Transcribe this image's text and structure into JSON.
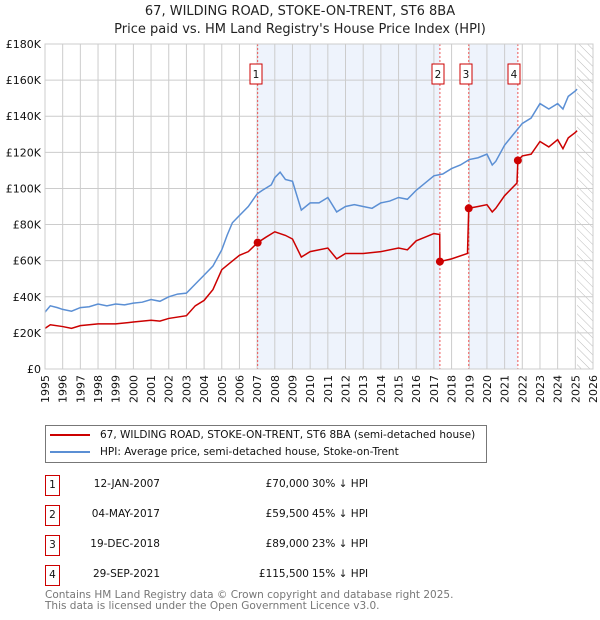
{
  "title": "67, WILDING ROAD, STOKE-ON-TRENT, ST6 8BA",
  "subtitle": "Price paid vs. HM Land Registry's House Price Index (HPI)",
  "legend": {
    "property": "67, WILDING ROAD, STOKE-ON-TRENT, ST6 8BA (semi-detached house)",
    "hpi": "HPI: Average price, semi-detached house, Stoke-on-Trent"
  },
  "sales": [
    {
      "n": "1",
      "date": "12-JAN-2007",
      "price": "£70,000",
      "hpi": "30% ↓ HPI"
    },
    {
      "n": "2",
      "date": "04-MAY-2017",
      "price": "£59,500",
      "hpi": "45% ↓ HPI"
    },
    {
      "n": "3",
      "date": "19-DEC-2018",
      "price": "£89,000",
      "hpi": "23% ↓ HPI"
    },
    {
      "n": "4",
      "date": "29-SEP-2021",
      "price": "£115,500",
      "hpi": "15% ↓ HPI"
    }
  ],
  "footer": [
    "Contains HM Land Registry data © Crown copyright and database right 2025.",
    "This data is licensed under the Open Government Licence v3.0."
  ],
  "chart_data": {
    "type": "line",
    "xlim": [
      1995,
      2026
    ],
    "ylim": [
      0,
      180000
    ],
    "yticks": [
      "£0",
      "£20K",
      "£40K",
      "£60K",
      "£80K",
      "£100K",
      "£120K",
      "£140K",
      "£160K",
      "£180K"
    ],
    "xticks": [
      "1995",
      "1996",
      "1997",
      "1998",
      "1999",
      "2000",
      "2001",
      "2002",
      "2003",
      "2004",
      "2005",
      "2006",
      "2007",
      "2008",
      "2009",
      "2010",
      "2011",
      "2012",
      "2013",
      "2014",
      "2015",
      "2016",
      "2017",
      "2018",
      "2019",
      "2020",
      "2021",
      "2022",
      "2023",
      "2024",
      "2025",
      "2026"
    ],
    "colors": {
      "property": "#cc0000",
      "hpi": "#5b8fd4",
      "shade": "#eef3fc"
    },
    "shaded": [
      [
        2007.03,
        2017.34
      ],
      [
        2018.97,
        2021.75
      ]
    ],
    "forecast_from": 2025.1,
    "series": [
      {
        "name": "hpi",
        "x": [
          1995,
          1995.3,
          1995.7,
          1996,
          1996.5,
          1997,
          1997.5,
          1998,
          1998.5,
          1999,
          1999.5,
          2000,
          2000.5,
          2001,
          2001.5,
          2002,
          2002.5,
          2003,
          2003.5,
          2004,
          2004.5,
          2005,
          2005.3,
          2005.6,
          2006,
          2006.5,
          2007,
          2007.3,
          2007.8,
          2008,
          2008.3,
          2008.6,
          2009,
          2009.5,
          2010,
          2010.5,
          2011,
          2011.5,
          2012,
          2012.5,
          2013,
          2013.5,
          2014,
          2014.5,
          2015,
          2015.5,
          2016,
          2016.5,
          2017,
          2017.5,
          2018,
          2018.5,
          2019,
          2019.5,
          2020,
          2020.3,
          2020.5,
          2021,
          2021.5,
          2022,
          2022.5,
          2023,
          2023.5,
          2024,
          2024.3,
          2024.6,
          2025,
          2025.1
        ],
        "y": [
          31500,
          35000,
          34000,
          33000,
          32000,
          34000,
          34500,
          36000,
          35000,
          36000,
          35500,
          36500,
          37000,
          38500,
          37500,
          40000,
          41500,
          42000,
          47000,
          52000,
          57000,
          66000,
          74000,
          81000,
          85000,
          90000,
          97000,
          99000,
          102000,
          106000,
          109000,
          105000,
          104000,
          88000,
          92000,
          92000,
          95000,
          87000,
          90000,
          91000,
          90000,
          89000,
          92000,
          93000,
          95000,
          94000,
          99000,
          103000,
          107000,
          108000,
          111000,
          113000,
          116000,
          117000,
          119000,
          113000,
          115000,
          124000,
          130000,
          136000,
          139000,
          147000,
          144000,
          147000,
          144000,
          151000,
          154000,
          155000
        ]
      },
      {
        "name": "property",
        "x": [
          1995,
          1995.3,
          1996,
          1996.5,
          1997,
          1998,
          1999,
          2000,
          2001,
          2001.5,
          2002,
          2003,
          2003.5,
          2004,
          2004.5,
          2005,
          2005.5,
          2006,
          2006.5,
          2007.03,
          2007.5,
          2008,
          2008.6,
          2009,
          2009.5,
          2010,
          2011,
          2011.5,
          2012,
          2013,
          2014,
          2015,
          2015.5,
          2016,
          2016.5,
          2017,
          2017.33,
          2017.34,
          2018,
          2018.9,
          2018.97,
          2019.5,
          2020,
          2020.3,
          2020.5,
          2021,
          2021.7,
          2021.75,
          2022,
          2022.5,
          2023,
          2023.5,
          2024,
          2024.3,
          2024.6,
          2025,
          2025.1
        ],
        "y": [
          22500,
          24500,
          23500,
          22500,
          24000,
          25000,
          25000,
          26000,
          27000,
          26500,
          28000,
          29500,
          35000,
          38000,
          44000,
          55000,
          59000,
          63000,
          65000,
          70000,
          73000,
          76000,
          74000,
          72000,
          62000,
          65000,
          67000,
          61000,
          64000,
          64000,
          65000,
          67000,
          66000,
          71000,
          73000,
          75000,
          74500,
          59500,
          61000,
          64000,
          89000,
          90000,
          91000,
          87000,
          89000,
          96000,
          103000,
          115500,
          118000,
          119000,
          126000,
          123000,
          127000,
          122000,
          128000,
          131000,
          132000
        ]
      }
    ]
  }
}
